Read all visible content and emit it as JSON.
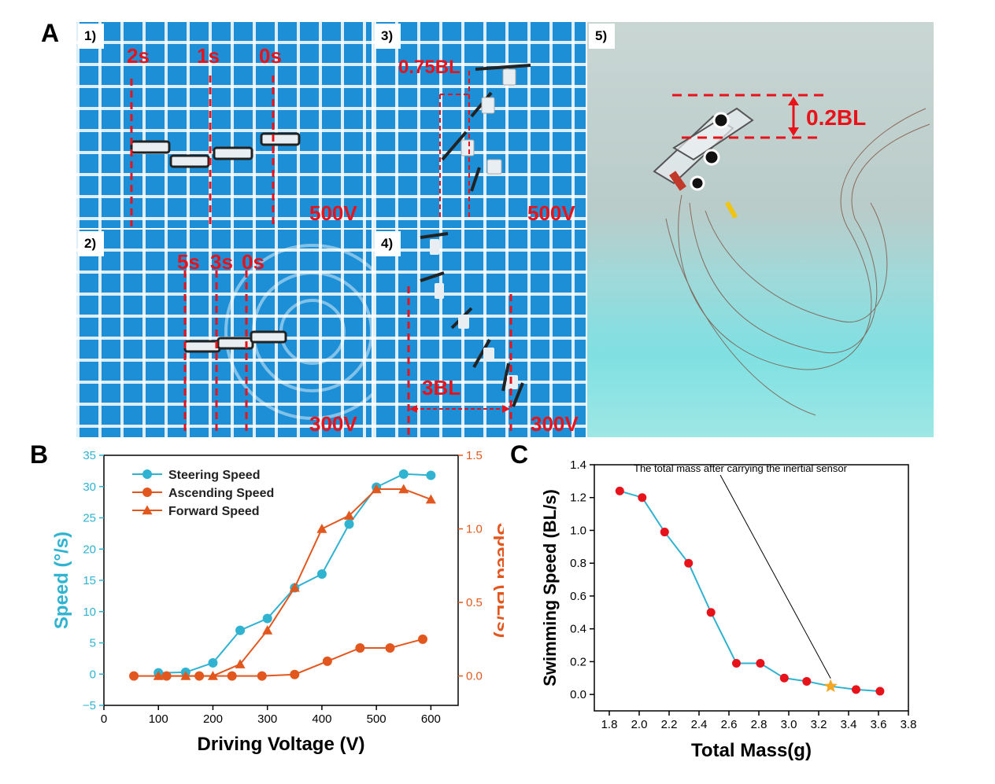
{
  "panel_a": {
    "letter": "A",
    "photos": [
      {
        "label": "1)",
        "times": [
          "2s",
          "1s",
          "0s"
        ],
        "voltage": "500V"
      },
      {
        "label": "2)",
        "times": [
          "5s",
          "3s",
          "0s"
        ],
        "voltage": "300V"
      },
      {
        "label": "3)",
        "measure": "0.75BL",
        "voltage": "500V"
      },
      {
        "label": "4)",
        "measure": "3BL",
        "voltage": "300V"
      },
      {
        "label": "5)",
        "measure": "0.2BL"
      }
    ]
  },
  "chart_data": [
    {
      "panel": "B",
      "type": "line",
      "xlabel": "Driving Voltage (V)",
      "ylabel": "Speed (°/s)",
      "ylabel_right": "Speed (BL/s)",
      "xlim": [
        0,
        650
      ],
      "ylim": [
        -5,
        35
      ],
      "ylim_right": [
        -0.2,
        1.5
      ],
      "xticks": [
        "0",
        "100",
        "200",
        "300",
        "400",
        "500",
        "600"
      ],
      "yticks": [
        "−5",
        "0",
        "5",
        "10",
        "15",
        "20",
        "25",
        "30",
        "35"
      ],
      "yticks_right": [
        "0.0",
        "0.5",
        "1.0",
        "1.5"
      ],
      "legend_position": "top-left",
      "grid": false,
      "series": [
        {
          "name": "Steering Speed",
          "axis": "left",
          "marker": "circle",
          "color": "#2fb3d1",
          "x": [
            100,
            150,
            200,
            250,
            300,
            350,
            400,
            450,
            500,
            550,
            600
          ],
          "y": [
            0.2,
            0.3,
            1.8,
            7.0,
            8.9,
            13.8,
            16.0,
            24.0,
            29.9,
            32.0,
            31.8
          ]
        },
        {
          "name": "Ascending Speed",
          "axis": "right",
          "marker": "circle",
          "color": "#e2571e",
          "x": [
            55,
            115,
            175,
            235,
            290,
            350,
            410,
            470,
            525,
            585
          ],
          "y": [
            0.0,
            0.0,
            0.0,
            0.0,
            0.0,
            0.01,
            0.1,
            0.19,
            0.19,
            0.25
          ]
        },
        {
          "name": "Forward Speed",
          "axis": "right",
          "marker": "triangle",
          "color": "#e2571e",
          "x": [
            100,
            150,
            200,
            250,
            300,
            350,
            400,
            450,
            500,
            550,
            600
          ],
          "y": [
            0.0,
            0.0,
            0.0,
            0.08,
            0.31,
            0.6,
            1.0,
            1.09,
            1.27,
            1.27,
            1.2
          ]
        }
      ]
    },
    {
      "panel": "C",
      "type": "scatter",
      "xlabel": "Total Mass(g)",
      "ylabel": "Swimming Speed (BL/s)",
      "xlim": [
        1.7,
        3.8
      ],
      "ylim": [
        -0.1,
        1.4
      ],
      "xticks": [
        "1.8",
        "2.0",
        "2.2",
        "2.4",
        "2.6",
        "2.8",
        "3.0",
        "3.2",
        "3.4",
        "3.6",
        "3.8"
      ],
      "yticks": [
        "0.0",
        "0.2",
        "0.4",
        "0.6",
        "0.8",
        "1.0",
        "1.2",
        "1.4"
      ],
      "grid": false,
      "line_color": "#2fb3d1",
      "point_color": "#e8121a",
      "x": [
        1.87,
        2.02,
        2.17,
        2.33,
        2.48,
        2.65,
        2.81,
        2.97,
        3.12,
        3.28,
        3.45,
        3.61
      ],
      "y": [
        1.24,
        1.2,
        0.99,
        0.8,
        0.5,
        0.19,
        0.19,
        0.1,
        0.08,
        0.05,
        0.03,
        0.02
      ],
      "highlight": {
        "x": 3.28,
        "y": 0.05,
        "marker": "star",
        "color": "#f5a623",
        "annotation": "The total mass after carrying the inertial sensor"
      }
    }
  ]
}
